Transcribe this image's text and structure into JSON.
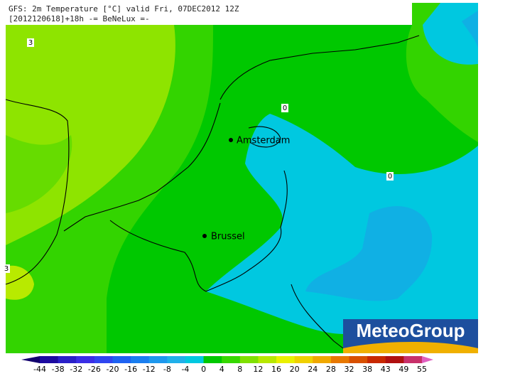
{
  "header": {
    "line1": "GFS: 2m Temperature [°C] valid Fri, 07DEC2012 12Z",
    "line2": "[2012120618]+18h -= BeNeLux =-"
  },
  "cities": [
    "Amsterdam",
    "Brussel"
  ],
  "contour_labels": [
    "0",
    "0",
    "3",
    "3"
  ],
  "logo": "MeteoGroup",
  "legend": {
    "labels": [
      -44,
      -38,
      -32,
      -26,
      -20,
      -16,
      -12,
      -8,
      -4,
      0,
      4,
      8,
      12,
      16,
      20,
      24,
      28,
      32,
      38,
      43,
      49,
      55
    ],
    "colors": [
      "#12006e",
      "#1c0aa0",
      "#2a20c8",
      "#3a2ee6",
      "#2f45f0",
      "#1e62f2",
      "#1a7ef0",
      "#1e98ee",
      "#20b0ea",
      "#00c8e0",
      "#00c800",
      "#36d800",
      "#80e000",
      "#b8e800",
      "#eaf000",
      "#f0d000",
      "#f0a800",
      "#e87800",
      "#d85000",
      "#c82800",
      "#b01010",
      "#c8306a",
      "#e060c0"
    ]
  }
}
